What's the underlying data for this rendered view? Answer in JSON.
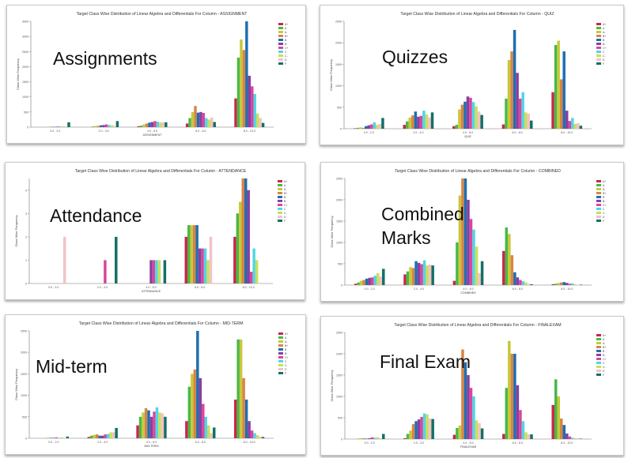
{
  "colors": [
    "#c8284a",
    "#48b848",
    "#c8c83a",
    "#d98444",
    "#1f6fb0",
    "#8a3ea0",
    "#d8469e",
    "#4fd6e6",
    "#c8e05a",
    "#f4c2c4",
    "#137068"
  ],
  "legend": [
    "A+",
    "A",
    "A-",
    "B+",
    "B",
    "B-",
    "C+",
    "C",
    "C-",
    "D",
    "F"
  ],
  "panels": [
    {
      "label": "Assignments",
      "chart_data": {
        "type": "bar",
        "title": "Target Class Wise Distribution of Linear Algebra and Differentials For Column - ASSIGNMENT",
        "xlabel": "ASSIGNMENT",
        "ylabel": "Class Wise Frequency",
        "categories": [
          "0.0 - 2.0",
          "2.0 - 4.0",
          "4.0 - 6.0",
          "6.0 - 8.0",
          "8.0 - 10.0"
        ],
        "ylim": [
          0,
          3500
        ],
        "yticks": [
          0,
          500,
          1000,
          1500,
          2000,
          2500,
          3000,
          3500
        ],
        "series_values": [
          [
            0,
            0,
            30,
            120,
            950
          ],
          [
            0,
            20,
            50,
            300,
            2300
          ],
          [
            10,
            40,
            90,
            500,
            2900
          ],
          [
            10,
            40,
            120,
            700,
            2550
          ],
          [
            10,
            60,
            150,
            480,
            3500
          ],
          [
            10,
            70,
            170,
            500,
            1700
          ],
          [
            20,
            90,
            200,
            470,
            1350
          ],
          [
            20,
            70,
            180,
            300,
            1100
          ],
          [
            30,
            60,
            150,
            250,
            450
          ],
          [
            0,
            40,
            160,
            320,
            300
          ],
          [
            160,
            200,
            160,
            170,
            140
          ]
        ]
      }
    },
    {
      "label": "Quizzes",
      "chart_data": {
        "type": "bar",
        "title": "Target Class Wise Distribution of Linear Algebra and Differentials For Column - QUIZ",
        "xlabel": "QUIZ",
        "ylabel": "Class Wise Frequency",
        "categories": [
          "0.0 - 2.0",
          "2.0 - 4.0",
          "4.0 - 6.0",
          "6.0 - 8.0",
          "8.0 - 10.0"
        ],
        "ylim": [
          0,
          2500
        ],
        "yticks": [
          0,
          500,
          1000,
          1500,
          2000,
          2500
        ],
        "series_values": [
          [
            10,
            90,
            60,
            100,
            850
          ],
          [
            20,
            170,
            90,
            700,
            1950
          ],
          [
            30,
            260,
            450,
            1600,
            2050
          ],
          [
            20,
            310,
            560,
            1800,
            1150
          ],
          [
            60,
            400,
            630,
            2300,
            1800
          ],
          [
            80,
            280,
            750,
            1300,
            420
          ],
          [
            100,
            300,
            720,
            700,
            180
          ],
          [
            150,
            420,
            620,
            850,
            250
          ],
          [
            90,
            330,
            520,
            380,
            110
          ],
          [
            110,
            260,
            400,
            350,
            130
          ],
          [
            250,
            380,
            320,
            190,
            70
          ]
        ]
      }
    },
    {
      "label": "Attendance",
      "chart_data": {
        "type": "bar",
        "title": "Target Class Wise Distribution of Linear Algebra and Differentials For Column - ATTENDANCE",
        "xlabel": "ATTENDANCE",
        "ylabel": "Class Wise Frequency",
        "categories": [
          "0.0 - 2.0",
          "2.0 - 4.0",
          "4.0 - 6.0",
          "6.0 - 8.0",
          "8.0 - 10.0"
        ],
        "ylim": [
          0,
          4.5
        ],
        "yticks": [
          0,
          1,
          2,
          3,
          4
        ],
        "series_values": [
          [
            0,
            0,
            0,
            2,
            2
          ],
          [
            0,
            0,
            0,
            2.5,
            3
          ],
          [
            0,
            0,
            0,
            2.5,
            3.5
          ],
          [
            0,
            0,
            0,
            2.5,
            4.5
          ],
          [
            0,
            0,
            0,
            2.5,
            4.5
          ],
          [
            0,
            0,
            1,
            1.5,
            4
          ],
          [
            0,
            1,
            1,
            1.5,
            0.5
          ],
          [
            0,
            0,
            1,
            1.5,
            1.5
          ],
          [
            0,
            0,
            1,
            1,
            1
          ],
          [
            2,
            0,
            0,
            2,
            0
          ],
          [
            0,
            2,
            1,
            0,
            0
          ]
        ]
      }
    },
    {
      "label": "Combined\nMarks",
      "chart_data": {
        "type": "bar",
        "title": "Target Class Wise Distribution of Linear Algebra and Differentials For Column - COMBINED",
        "xlabel": "COMBINED",
        "ylabel": "Class Wise Frequency",
        "categories": [
          "0.0 - 2.0",
          "2.0 - 4.0",
          "4.0 - 6.0",
          "6.0 - 8.0",
          "8.0 - 10.0"
        ],
        "ylim": [
          0,
          2500
        ],
        "yticks": [
          0,
          500,
          1000,
          1500,
          2000,
          2500
        ],
        "series_values": [
          [
            30,
            250,
            100,
            800,
            20
          ],
          [
            60,
            320,
            1000,
            1350,
            30
          ],
          [
            100,
            420,
            2100,
            1200,
            50
          ],
          [
            120,
            400,
            2500,
            700,
            60
          ],
          [
            150,
            560,
            2700,
            300,
            70
          ],
          [
            170,
            520,
            2000,
            180,
            50
          ],
          [
            180,
            490,
            1550,
            120,
            30
          ],
          [
            220,
            580,
            1300,
            90,
            40
          ],
          [
            280,
            460,
            900,
            60,
            20
          ],
          [
            200,
            480,
            280,
            30,
            10
          ],
          [
            380,
            460,
            560,
            20,
            10
          ]
        ]
      }
    },
    {
      "label": "Mid-term",
      "chart_data": {
        "type": "bar",
        "title": "Target Class Wise Distribution of Linear Algebra and Differentials For Column - MID-TERM",
        "xlabel": "MID-TERM",
        "ylabel": "Class Wise Frequency",
        "categories": [
          "0.0 - 2.0",
          "2.0 - 4.0",
          "4.0 - 6.0",
          "6.0 - 8.0",
          "8.0 - 10.0"
        ],
        "ylim": [
          0,
          2500
        ],
        "yticks": [
          0,
          500,
          1000,
          1500,
          2000,
          2500
        ],
        "series_values": [
          [
            0,
            30,
            300,
            400,
            900
          ],
          [
            0,
            60,
            500,
            1200,
            2300
          ],
          [
            10,
            80,
            600,
            1500,
            2300
          ],
          [
            10,
            90,
            700,
            1600,
            1400
          ],
          [
            10,
            60,
            650,
            2800,
            900
          ],
          [
            10,
            60,
            500,
            1400,
            400
          ],
          [
            20,
            90,
            620,
            800,
            180
          ],
          [
            10,
            100,
            720,
            500,
            120
          ],
          [
            20,
            140,
            600,
            300,
            70
          ],
          [
            10,
            140,
            580,
            120,
            40
          ],
          [
            40,
            240,
            500,
            250,
            30
          ]
        ]
      }
    },
    {
      "label": "Final Exam",
      "chart_data": {
        "type": "bar",
        "title": "Target Class Wise Distribution of Linear Algebra and Differentials For Column - FINALEXAM",
        "xlabel": "FINALEXAM",
        "ylabel": "Class Wise Frequency",
        "categories": [
          "0.0 - 2.0",
          "2.0 - 4.0",
          "4.0 - 6.0",
          "6.0 - 8.0",
          "8.0 - 10.0"
        ],
        "ylim": [
          0,
          2500
        ],
        "yticks": [
          0,
          500,
          1000,
          1500,
          2000,
          2500
        ],
        "series_values": [
          [
            0,
            20,
            100,
            120,
            800
          ],
          [
            10,
            120,
            260,
            1200,
            1400
          ],
          [
            20,
            200,
            320,
            2300,
            1000
          ],
          [
            20,
            350,
            2100,
            2000,
            480
          ],
          [
            10,
            420,
            1800,
            2000,
            330
          ],
          [
            20,
            460,
            1500,
            1260,
            130
          ],
          [
            40,
            520,
            1200,
            680,
            60
          ],
          [
            30,
            600,
            1000,
            420,
            30
          ],
          [
            40,
            580,
            440,
            160,
            20
          ],
          [
            20,
            480,
            370,
            110,
            20
          ],
          [
            120,
            470,
            250,
            110,
            10
          ]
        ]
      }
    }
  ]
}
